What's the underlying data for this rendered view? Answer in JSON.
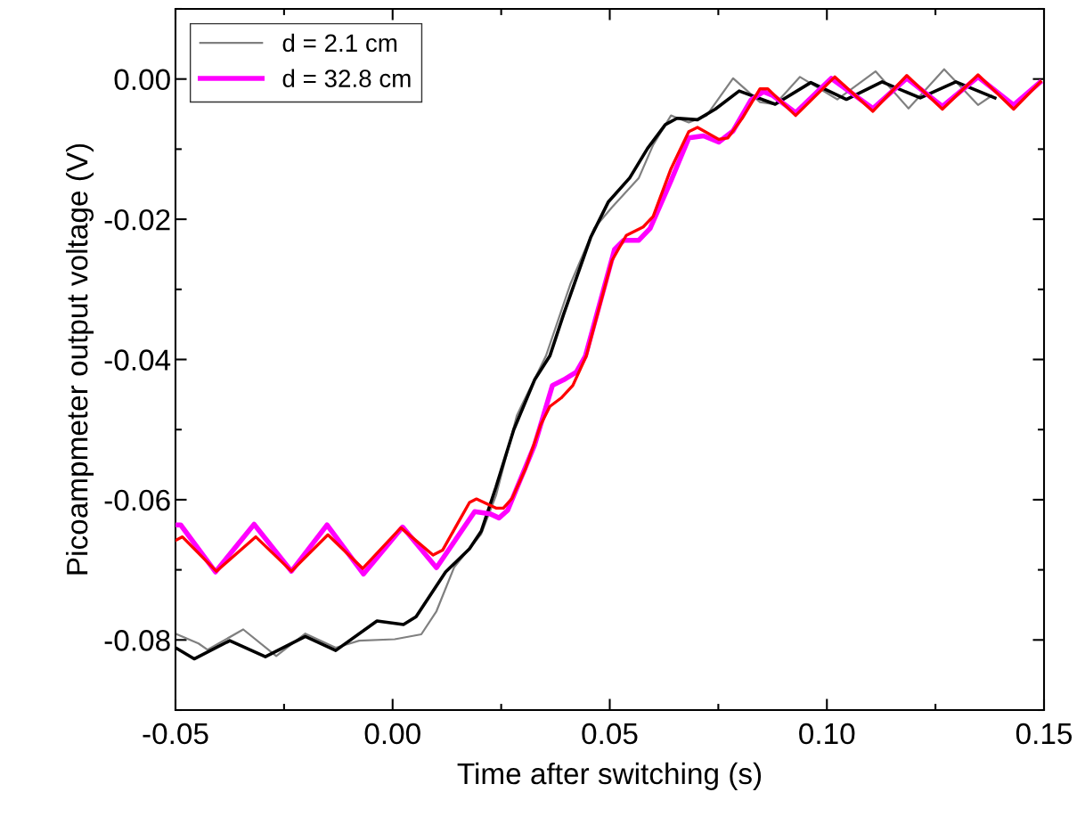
{
  "chart_data": {
    "type": "line",
    "xlabel": "Time after switching (s)",
    "ylabel": "Picoampmeter output voltage (V)",
    "xlim": [
      -0.05,
      0.15
    ],
    "ylim": [
      -0.09,
      0.01
    ],
    "xticks": [
      {
        "value": -0.05,
        "label": "-0.05"
      },
      {
        "value": 0,
        "label": "0.00"
      },
      {
        "value": 0.05,
        "label": "0.05"
      },
      {
        "value": 0.1,
        "label": "0.10"
      },
      {
        "value": 0.15,
        "label": "0.15"
      }
    ],
    "yticks": [
      {
        "value": -0.08,
        "label": "-0.08"
      },
      {
        "value": -0.06,
        "label": "-0.06"
      },
      {
        "value": -0.04,
        "label": "-0.04"
      },
      {
        "value": -0.02,
        "label": "-0.02"
      },
      {
        "value": 0,
        "label": "0.00"
      }
    ],
    "grid": false,
    "legend": "top left",
    "marker": "none",
    "line_style": "solid",
    "series": [
      {
        "name": "d = 2.1 cm",
        "color": "#808080",
        "x": [
          -0.05,
          -0.0447,
          -0.0426,
          -0.0344,
          -0.0268,
          -0.0201,
          -0.0131,
          -0.0077,
          0.0005,
          0.0066,
          0.0101,
          0.0142,
          0.0204,
          0.0238,
          0.0286,
          0.03,
          0.0353,
          0.0409,
          0.0464,
          0.0505,
          0.0567,
          0.06,
          0.0641,
          0.0682,
          0.0723,
          0.0784,
          0.0846,
          0.0881,
          0.0938,
          0.1024,
          0.1112,
          0.1188,
          0.127,
          0.1348,
          0.1379
        ],
        "values": [
          -0.0791,
          -0.0805,
          -0.0814,
          -0.0785,
          -0.0823,
          -0.0791,
          -0.0811,
          -0.0801,
          -0.0799,
          -0.0792,
          -0.0759,
          -0.0696,
          -0.0649,
          -0.0594,
          -0.048,
          -0.0462,
          -0.0395,
          -0.0293,
          -0.0213,
          -0.0183,
          -0.0141,
          -0.0094,
          -0.0052,
          -0.0062,
          -0.0052,
          0.0001,
          -0.0033,
          -0.0036,
          0.0003,
          -0.0029,
          0.0011,
          -0.0042,
          0.0014,
          -0.0037,
          -0.0024
        ]
      },
      {
        "color": "#000000",
        "x": [
          -0.05,
          -0.0457,
          -0.0375,
          -0.0293,
          -0.0201,
          -0.0131,
          -0.0036,
          0.0025,
          0.0054,
          0.0122,
          0.0177,
          0.0204,
          0.0238,
          0.0279,
          0.0327,
          0.0362,
          0.0394,
          0.0456,
          0.0497,
          0.0546,
          0.0587,
          0.0628,
          0.0655,
          0.0702,
          0.0743,
          0.0798,
          0.0881,
          0.0963,
          0.1045,
          0.1127,
          0.1215,
          0.1297,
          0.1387
        ],
        "values": [
          -0.0811,
          -0.0827,
          -0.0801,
          -0.0824,
          -0.0795,
          -0.0815,
          -0.0773,
          -0.0778,
          -0.0767,
          -0.0703,
          -0.067,
          -0.0645,
          -0.0582,
          -0.05,
          -0.0429,
          -0.0395,
          -0.0335,
          -0.0226,
          -0.0175,
          -0.0141,
          -0.0099,
          -0.0065,
          -0.0056,
          -0.0058,
          -0.0043,
          -0.0017,
          -0.0036,
          -0.0005,
          -0.0029,
          -0.0004,
          -0.0027,
          -0.0004,
          -0.0027
        ]
      },
      {
        "name": "d = 32.8 cm",
        "color": "#ff00ff",
        "x": [
          -0.05,
          -0.0488,
          -0.0408,
          -0.0319,
          -0.0233,
          -0.0151,
          -0.0067,
          0.0023,
          0.0101,
          0.0189,
          0.0224,
          0.0245,
          0.0265,
          0.0327,
          0.0368,
          0.0394,
          0.0423,
          0.0444,
          0.0511,
          0.0532,
          0.0567,
          0.0593,
          0.0641,
          0.0682,
          0.0716,
          0.0751,
          0.0784,
          0.0825,
          0.0854,
          0.0874,
          0.0928,
          0.101,
          0.1106,
          0.1184,
          0.1266,
          0.1348,
          0.143,
          0.149
        ],
        "values": [
          -0.0636,
          -0.0636,
          -0.0703,
          -0.0635,
          -0.0702,
          -0.0636,
          -0.0706,
          -0.0639,
          -0.0697,
          -0.0617,
          -0.062,
          -0.0626,
          -0.0615,
          -0.0522,
          -0.0437,
          -0.0429,
          -0.0418,
          -0.0395,
          -0.0243,
          -0.023,
          -0.023,
          -0.0213,
          -0.0145,
          -0.0084,
          -0.0081,
          -0.009,
          -0.0074,
          -0.003,
          -0.0018,
          -0.0023,
          -0.0048,
          0.0001,
          -0.0042,
          0.0001,
          -0.0039,
          0.0003,
          -0.0037,
          -0.0005
        ]
      },
      {
        "color": "#ff0000",
        "x": [
          -0.05,
          -0.0484,
          -0.0406,
          -0.0315,
          -0.0233,
          -0.0149,
          -0.0069,
          0.0019,
          0.0093,
          0.0115,
          0.0177,
          0.0193,
          0.0238,
          0.0255,
          0.0275,
          0.0306,
          0.0341,
          0.0362,
          0.0388,
          0.0415,
          0.0446,
          0.0464,
          0.0505,
          0.0538,
          0.0577,
          0.06,
          0.0641,
          0.0682,
          0.0702,
          0.0751,
          0.0772,
          0.0805,
          0.0846,
          0.0864,
          0.0928,
          0.1018,
          0.1106,
          0.1184,
          0.1266,
          0.1348,
          0.143,
          0.1492
        ],
        "values": [
          -0.0658,
          -0.0653,
          -0.0702,
          -0.0653,
          -0.0702,
          -0.065,
          -0.0698,
          -0.064,
          -0.0679,
          -0.0672,
          -0.0604,
          -0.0599,
          -0.0612,
          -0.0612,
          -0.0598,
          -0.0556,
          -0.0493,
          -0.0467,
          -0.0455,
          -0.0437,
          -0.0395,
          -0.0353,
          -0.0259,
          -0.0223,
          -0.0211,
          -0.0196,
          -0.0128,
          -0.0075,
          -0.0069,
          -0.0086,
          -0.0084,
          -0.0056,
          -0.0014,
          -0.0014,
          -0.0052,
          0.0003,
          -0.0046,
          0.0005,
          -0.0043,
          0.0006,
          -0.0043,
          -0.0004
        ]
      }
    ]
  }
}
